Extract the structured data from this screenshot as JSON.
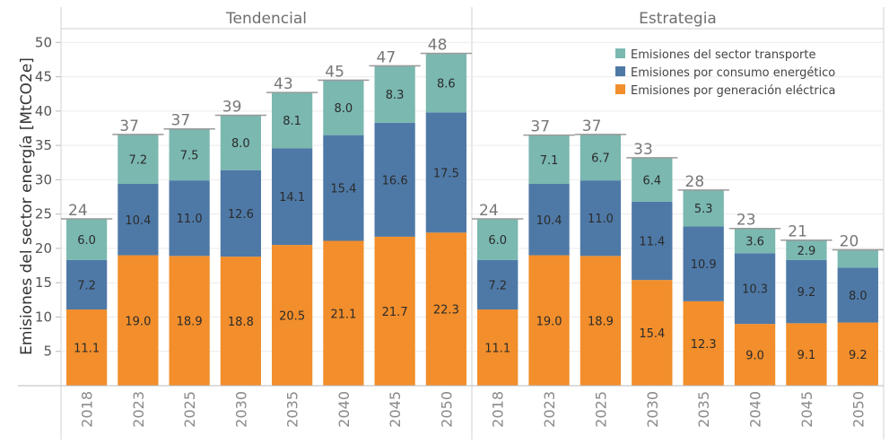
{
  "chart_data": {
    "type": "bar",
    "stacked": true,
    "ylabel": "Emisiones del sector energía [MtCO2e]",
    "yticks": [
      5,
      10,
      15,
      20,
      25,
      30,
      35,
      40,
      45,
      50
    ],
    "ylim": [
      0,
      52
    ],
    "grid": true,
    "legend_position": "top-right",
    "legend": [
      {
        "name": "Emisiones del sector transporte",
        "color": "#7ab8b0"
      },
      {
        "name": "Emisiones por consumo energético",
        "color": "#4e79a7"
      },
      {
        "name": "Emisiones por generación eléctrica",
        "color": "#f28e2b"
      }
    ],
    "panels": [
      {
        "title": "Tendencial",
        "categories": [
          "2018",
          "2023",
          "2025",
          "2030",
          "2035",
          "2040",
          "2045",
          "2050"
        ],
        "totals": [
          "24",
          "37",
          "37",
          "39",
          "43",
          "45",
          "47",
          "48"
        ],
        "series": [
          {
            "name": "Emisiones por generación eléctrica",
            "color": "#f28e2b",
            "values": [
              11.1,
              19.0,
              18.9,
              18.8,
              20.5,
              21.1,
              21.7,
              22.3
            ],
            "labels": [
              "11.1",
              "19.0",
              "18.9",
              "18.8",
              "20.5",
              "21.1",
              "21.7",
              "22.3"
            ]
          },
          {
            "name": "Emisiones por consumo energético",
            "color": "#4e79a7",
            "values": [
              7.2,
              10.4,
              11.0,
              12.6,
              14.1,
              15.4,
              16.6,
              17.5
            ],
            "labels": [
              "7.2",
              "10.4",
              "11.0",
              "12.6",
              "14.1",
              "15.4",
              "16.6",
              "17.5"
            ]
          },
          {
            "name": "Emisiones del sector transporte",
            "color": "#7ab8b0",
            "values": [
              6.0,
              7.2,
              7.5,
              8.0,
              8.1,
              8.0,
              8.3,
              8.6
            ],
            "labels": [
              "6.0",
              "7.2",
              "7.5",
              "8.0",
              "8.1",
              "8.0",
              "8.3",
              "8.6"
            ]
          }
        ]
      },
      {
        "title": "Estrategia",
        "categories": [
          "2018",
          "2023",
          "2025",
          "2030",
          "2035",
          "2040",
          "2045",
          "2050"
        ],
        "totals": [
          "24",
          "37",
          "37",
          "33",
          "28",
          "23",
          "21",
          "20"
        ],
        "series": [
          {
            "name": "Emisiones por generación eléctrica",
            "color": "#f28e2b",
            "values": [
              11.1,
              19.0,
              18.9,
              15.4,
              12.3,
              9.0,
              9.1,
              9.2
            ],
            "labels": [
              "11.1",
              "19.0",
              "18.9",
              "15.4",
              "12.3",
              "9.0",
              "9.1",
              "9.2"
            ]
          },
          {
            "name": "Emisiones por consumo energético",
            "color": "#4e79a7",
            "values": [
              7.2,
              10.4,
              11.0,
              11.4,
              10.9,
              10.3,
              9.2,
              8.0
            ],
            "labels": [
              "7.2",
              "10.4",
              "11.0",
              "11.4",
              "10.9",
              "10.3",
              "9.2",
              "8.0"
            ]
          },
          {
            "name": "Emisiones del sector transporte",
            "color": "#7ab8b0",
            "values": [
              6.0,
              7.1,
              6.7,
              6.4,
              5.3,
              3.6,
              2.9,
              2.6
            ],
            "labels": [
              "6.0",
              "7.1",
              "6.7",
              "6.4",
              "5.3",
              "3.6",
              "2.9",
              ""
            ]
          }
        ]
      }
    ]
  }
}
